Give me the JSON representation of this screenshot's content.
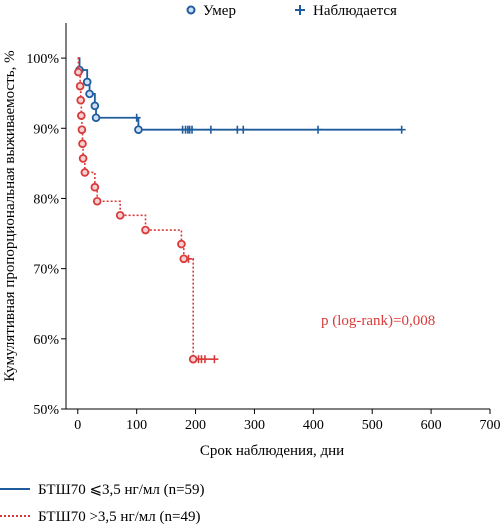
{
  "chart_data": {
    "type": "line",
    "subtype": "kaplan-meier",
    "xlabel": "Срок наблюдения, дни",
    "ylabel": "Кумулятивная пропорциональная выживаемость, %",
    "xlim": [
      -20,
      700
    ],
    "ylim": [
      50,
      105
    ],
    "x_ticks": [
      0,
      100,
      200,
      300,
      400,
      500,
      600,
      700
    ],
    "y_ticks": [
      50,
      60,
      70,
      80,
      90,
      100
    ],
    "y_tick_labels": [
      "50%",
      "60%",
      "70%",
      "80%",
      "90%",
      "100%"
    ],
    "grid": false,
    "marker_legend": [
      {
        "label": "Умер",
        "marker": "circle"
      },
      {
        "label": "Наблюдается",
        "marker": "plus"
      }
    ],
    "annotation": {
      "text": "p (log-rank)=0,008",
      "x": 510,
      "y": 62,
      "color": "#d93a3a"
    },
    "series": [
      {
        "name": "БТШ70 ⩽3,5 нг/мл (n=59)",
        "color": "#1f5c9e",
        "line_style": "solid",
        "steps": [
          [
            0,
            100
          ],
          [
            3,
            98.3
          ],
          [
            16,
            96.6
          ],
          [
            20,
            94.9
          ],
          [
            29,
            93.2
          ],
          [
            31,
            91.5
          ],
          [
            103,
            89.8
          ],
          [
            550,
            89.8
          ]
        ],
        "events": [
          [
            3,
            98.3
          ],
          [
            16,
            96.6
          ],
          [
            20,
            94.9
          ],
          [
            29,
            93.2
          ],
          [
            31,
            91.5
          ],
          [
            103,
            89.8
          ]
        ],
        "censored": [
          [
            100,
            91.5
          ],
          [
            178,
            89.8
          ],
          [
            183,
            89.8
          ],
          [
            187,
            89.8
          ],
          [
            190,
            89.8
          ],
          [
            194,
            89.8
          ],
          [
            226,
            89.8
          ],
          [
            271,
            89.8
          ],
          [
            281,
            89.8
          ],
          [
            408,
            89.8
          ],
          [
            550,
            89.8
          ]
        ]
      },
      {
        "name": "БТШ70 >3,5 нг/мл (n=49)",
        "color": "#d93a3a",
        "line_style": "dotted",
        "steps": [
          [
            0,
            100
          ],
          [
            1,
            98
          ],
          [
            4,
            96
          ],
          [
            5,
            94
          ],
          [
            6,
            91.8
          ],
          [
            7,
            89.8
          ],
          [
            8,
            87.8
          ],
          [
            9,
            85.7
          ],
          [
            12,
            83.7
          ],
          [
            29,
            81.6
          ],
          [
            33,
            79.6
          ],
          [
            72,
            77.6
          ],
          [
            115,
            75.5
          ],
          [
            176,
            73.5
          ],
          [
            180,
            71.4
          ],
          [
            196,
            57.1
          ],
          [
            232,
            57.1
          ]
        ],
        "events": [
          [
            1,
            98
          ],
          [
            4,
            96
          ],
          [
            5,
            94
          ],
          [
            6,
            91.8
          ],
          [
            7,
            89.8
          ],
          [
            8,
            87.8
          ],
          [
            9,
            85.7
          ],
          [
            12,
            83.7
          ],
          [
            29,
            81.6
          ],
          [
            33,
            79.6
          ],
          [
            72,
            77.6
          ],
          [
            115,
            75.5
          ],
          [
            176,
            73.5
          ],
          [
            180,
            71.4
          ],
          [
            196,
            57.1
          ]
        ],
        "censored": [
          [
            188,
            71.4
          ],
          [
            205,
            57.1
          ],
          [
            210,
            57.1
          ],
          [
            216,
            57.1
          ],
          [
            232,
            57.1
          ]
        ]
      }
    ]
  }
}
